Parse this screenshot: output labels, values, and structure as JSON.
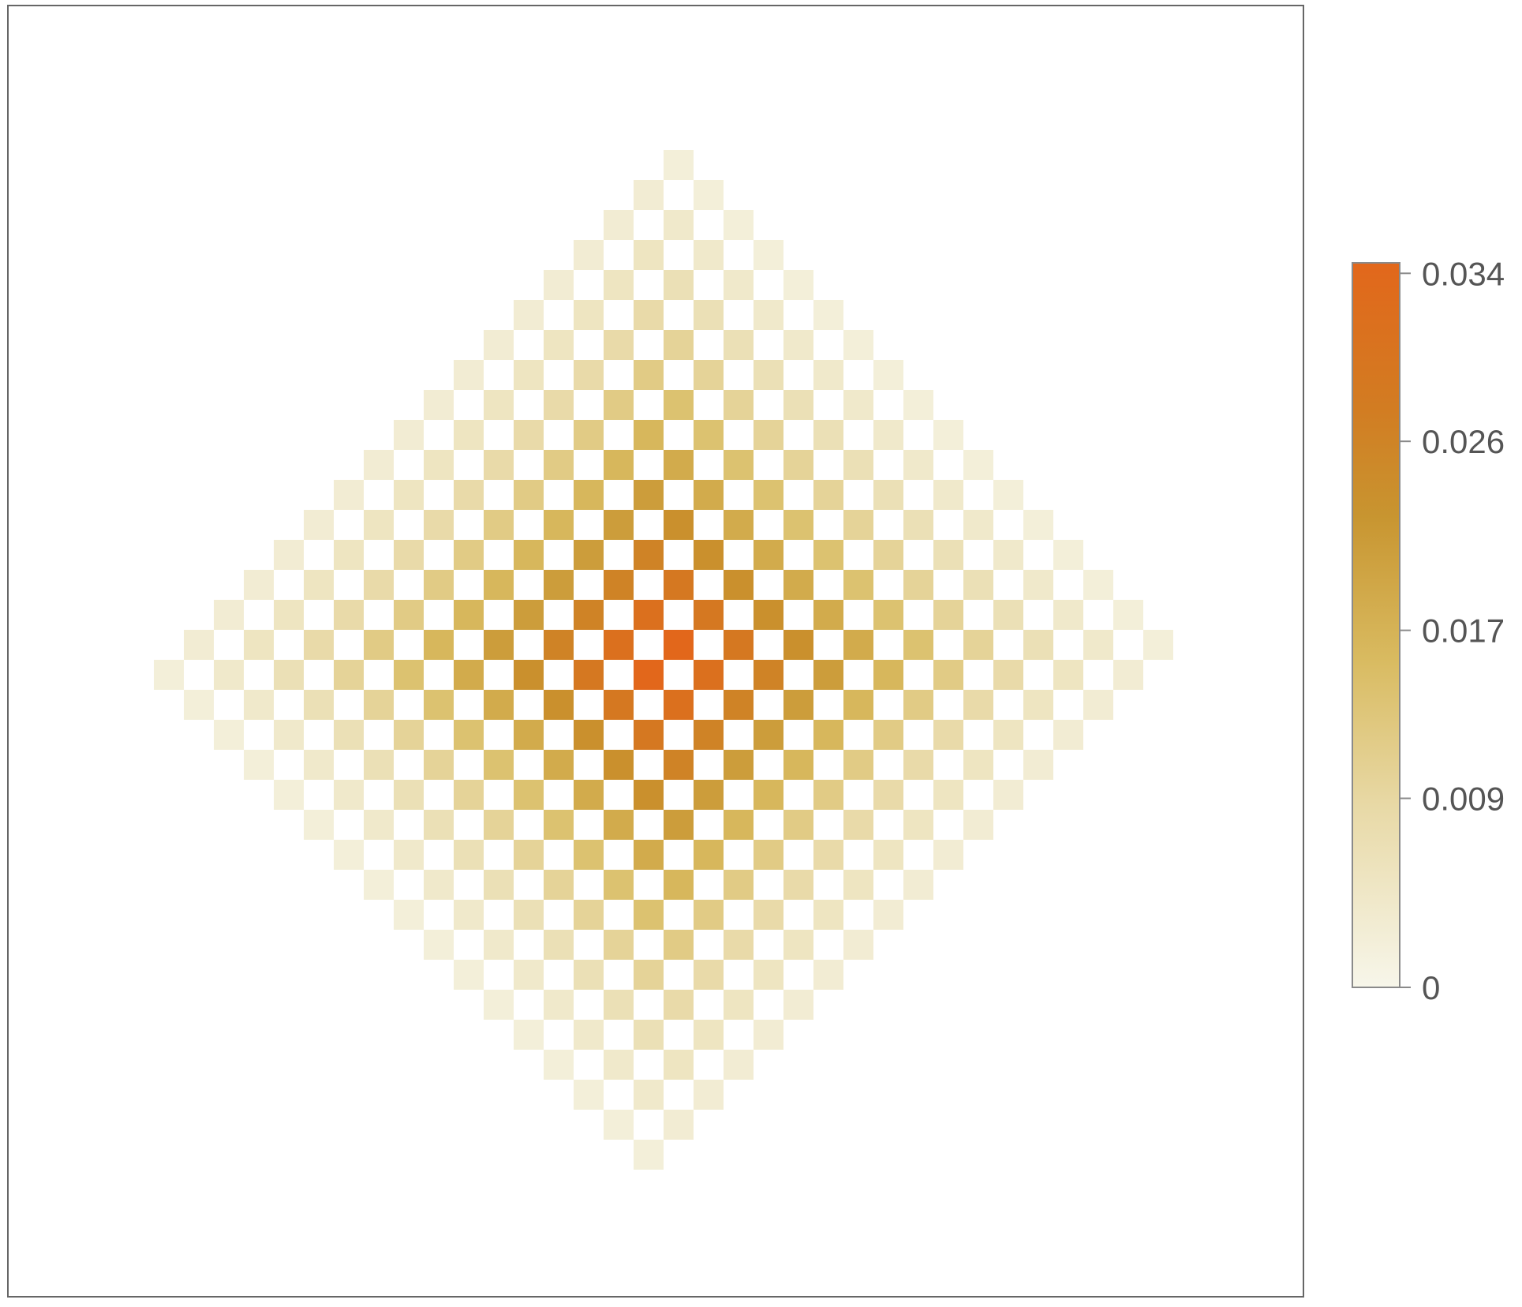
{
  "chart_data": {
    "type": "heatmap",
    "title": "",
    "xlabel": "",
    "ylabel": "",
    "grid": false,
    "frame_color": "#666666",
    "pattern": "checkerboard diamond; nonzero cells where (i + j) is odd and |i - 17.5| + |j - 17.5| <= 17.5; value decays from the center outward",
    "grid_size": [
      36,
      36
    ],
    "center": [
      17.5,
      17.5
    ],
    "max_value": 0.0345,
    "falloff_exponent": 1.5,
    "min_edge_value": 0.002,
    "colorbar": {
      "min": 0,
      "max": 0.0345,
      "ticks": [
        0,
        0.009,
        0.017,
        0.026,
        0.034
      ],
      "tick_labels": [
        "0",
        "0.009",
        "0.017",
        "0.026",
        "0.034"
      ],
      "colors": [
        {
          "value": 0,
          "color": "#f7f6ea"
        },
        {
          "value": 0.25,
          "color": "#e8d9a6"
        },
        {
          "value": 0.45,
          "color": "#d9bb61"
        },
        {
          "value": 0.65,
          "color": "#c89530"
        },
        {
          "value": 0.8,
          "color": "#d27c22"
        },
        {
          "value": 1,
          "color": "#e2671b"
        }
      ]
    }
  }
}
